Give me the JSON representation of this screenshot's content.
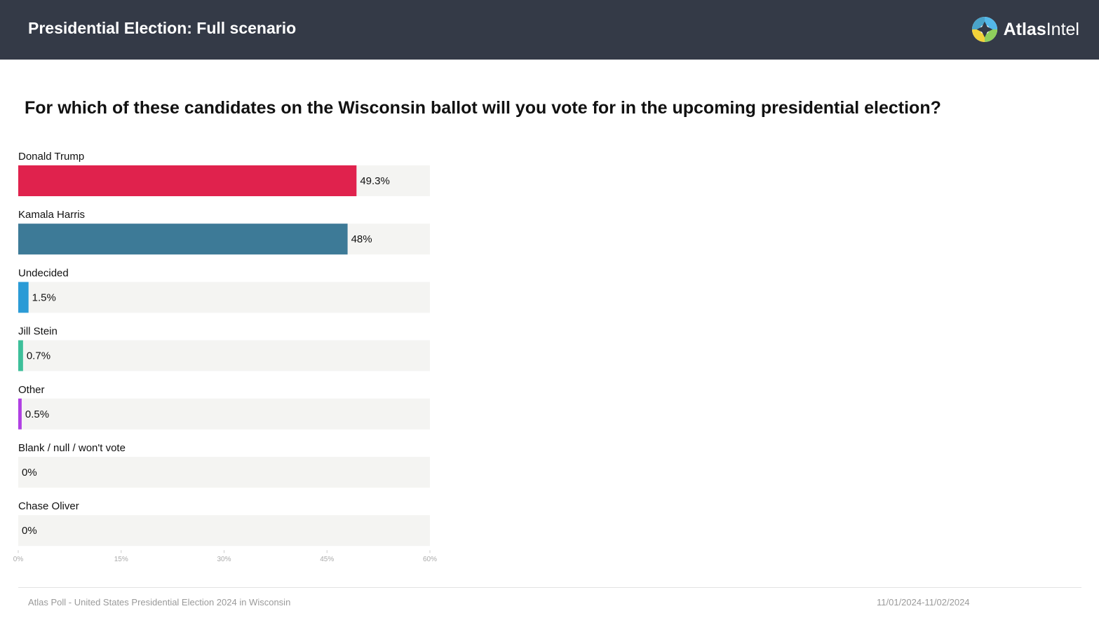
{
  "header": {
    "title": "Presidential Election: Full scenario",
    "logo_text_strong": "Atlas",
    "logo_text_light": "Intel",
    "logo_icon": "atlasintel-logo-icon"
  },
  "question": "For which of these candidates on the Wisconsin ballot will you vote for in the upcoming presidential election?",
  "chart_data": {
    "type": "bar",
    "orientation": "horizontal",
    "categories": [
      "Donald Trump",
      "Kamala Harris",
      "Undecided",
      "Jill Stein",
      "Other",
      "Blank / null / won't vote",
      "Chase Oliver"
    ],
    "values": [
      49.3,
      48,
      1.5,
      0.7,
      0.5,
      0,
      0
    ],
    "value_labels": [
      "49.3%",
      "48%",
      "1.5%",
      "0.7%",
      "0.5%",
      "0%",
      "0%"
    ],
    "colors": [
      "#e0224d",
      "#3d7a97",
      "#2b9bd6",
      "#3dbf9a",
      "#b040e3",
      "#cccccc",
      "#cccccc"
    ],
    "track_color": "#f4f4f2",
    "xlim": [
      0,
      60
    ],
    "xticks": [
      0,
      15,
      30,
      45,
      60
    ],
    "xtick_labels": [
      "0%",
      "15%",
      "30%",
      "45%",
      "60%"
    ],
    "title": "",
    "xlabel": "",
    "ylabel": "",
    "grid": false,
    "legend": "none"
  },
  "footer": {
    "source": "Atlas Poll - United States Presidential Election 2024 in Wisconsin",
    "dates": "11/01/2024-11/02/2024"
  }
}
